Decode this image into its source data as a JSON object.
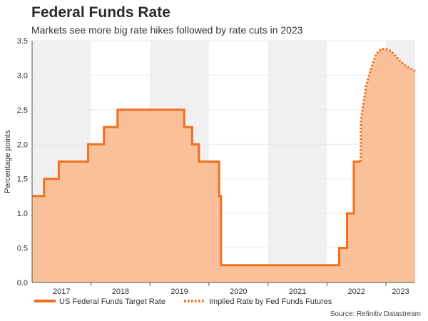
{
  "header": {
    "title": "Federal Funds Rate",
    "subtitle": "Markets see more big rate hikes followed by rate cuts in 2023"
  },
  "source": "Source: Refinitiv Datastream",
  "colors": {
    "line": "#f07020",
    "fill": "#f9c09a",
    "band": "#f0f0f0",
    "grid": "#e8e8e8"
  },
  "chart_data": {
    "type": "area",
    "title": "Federal Funds Rate",
    "subtitle": "Markets see more big rate hikes followed by rate cuts in 2023",
    "xlabel": "",
    "ylabel": "Percentage points",
    "xlim": [
      "2017-01-01",
      "2023-07-01"
    ],
    "ylim": [
      0,
      3.5
    ],
    "yticks": [
      0.0,
      0.5,
      1.0,
      1.5,
      2.0,
      2.5,
      3.0,
      3.5
    ],
    "ytick_labels": [
      "0.0",
      "0.5",
      "1.0",
      "1.5",
      "2.0",
      "2.5",
      "3.0",
      "3.5"
    ],
    "xtick_labels": [
      "2017",
      "2018",
      "2019",
      "2020",
      "2021",
      "2022",
      "2023"
    ],
    "grid": true,
    "legend_position": "bottom-left",
    "series": [
      {
        "name": "US Federal Funds Target Rate",
        "style": "solid",
        "points": [
          [
            "2017-01-01",
            1.25
          ],
          [
            "2017-03-16",
            1.25
          ],
          [
            "2017-03-16",
            1.5
          ],
          [
            "2017-06-15",
            1.5
          ],
          [
            "2017-06-15",
            1.75
          ],
          [
            "2017-12-14",
            1.75
          ],
          [
            "2017-12-14",
            2.0
          ],
          [
            "2018-03-22",
            2.0
          ],
          [
            "2018-03-22",
            2.25
          ],
          [
            "2018-06-14",
            2.25
          ],
          [
            "2018-06-14",
            2.5
          ],
          [
            "2018-12-20",
            2.5
          ],
          [
            "2019-08-01",
            2.5
          ],
          [
            "2019-08-01",
            2.25
          ],
          [
            "2019-09-19",
            2.25
          ],
          [
            "2019-09-19",
            2.0
          ],
          [
            "2019-10-31",
            2.0
          ],
          [
            "2019-10-31",
            1.75
          ],
          [
            "2020-03-04",
            1.75
          ],
          [
            "2020-03-04",
            1.25
          ],
          [
            "2020-03-16",
            1.25
          ],
          [
            "2020-03-16",
            0.25
          ],
          [
            "2022-03-17",
            0.25
          ],
          [
            "2022-03-17",
            0.5
          ],
          [
            "2022-05-05",
            0.5
          ],
          [
            "2022-05-05",
            1.0
          ],
          [
            "2022-06-16",
            1.0
          ],
          [
            "2022-06-16",
            1.75
          ],
          [
            "2022-07-28",
            1.75
          ]
        ]
      },
      {
        "name": "Implied Rate by Fed Funds Futures",
        "style": "dotted",
        "points": [
          [
            "2022-07-28",
            1.75
          ],
          [
            "2022-07-30",
            2.35
          ],
          [
            "2022-08-15",
            2.6
          ],
          [
            "2022-09-01",
            2.85
          ],
          [
            "2022-10-01",
            3.1
          ],
          [
            "2022-11-01",
            3.3
          ],
          [
            "2022-12-01",
            3.38
          ],
          [
            "2023-01-01",
            3.38
          ],
          [
            "2023-02-01",
            3.35
          ],
          [
            "2023-03-01",
            3.28
          ],
          [
            "2023-04-01",
            3.2
          ],
          [
            "2023-05-01",
            3.14
          ],
          [
            "2023-06-01",
            3.1
          ],
          [
            "2023-07-01",
            3.06
          ]
        ]
      }
    ]
  }
}
